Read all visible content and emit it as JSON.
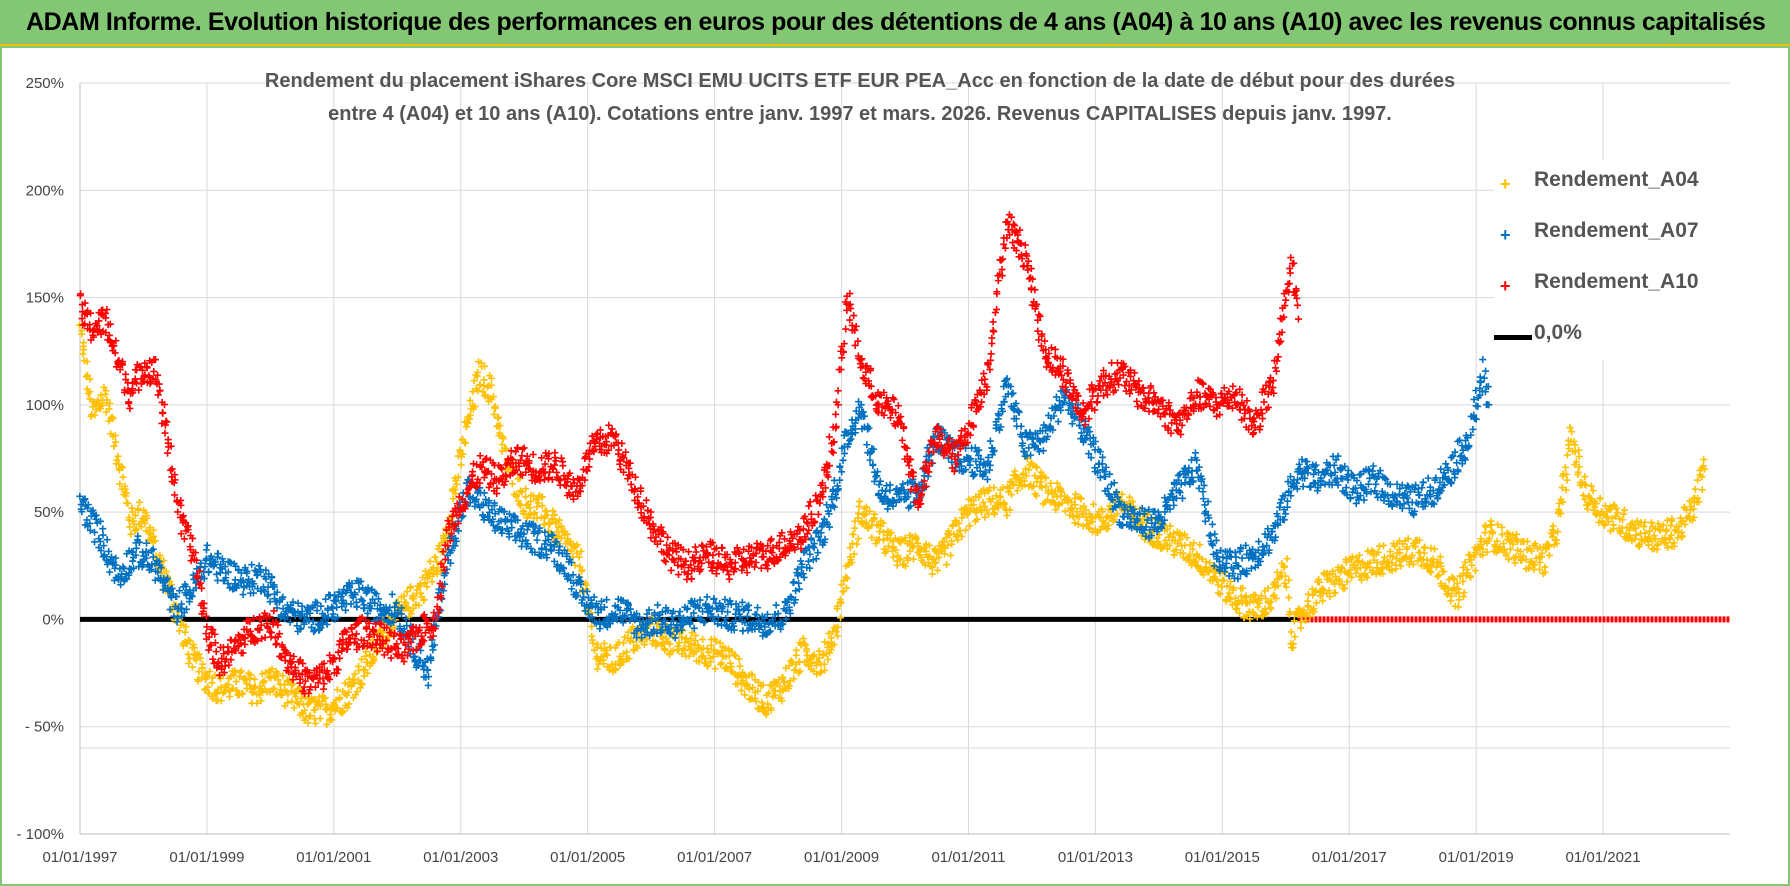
{
  "banner": {
    "title": "ADAM Informe. Evolution historique des performances en euros pour des détentions de 4 ans (A04) à 10 ans (A10) avec les revenus connus capitalisés"
  },
  "colors": {
    "banner_bg": "#83c774",
    "banner_border": "#f2c200",
    "A04": "#ffc000",
    "A07": "#0070c0",
    "A10": "#ff0000",
    "zero": "#000000"
  },
  "chart_data": {
    "type": "scatter",
    "title_line1": "Rendement du placement iShares Core MSCI EMU UCITS ETF EUR PEA_Acc en fonction de la date de début pour des durées",
    "title_line2": "entre 4 (A04) et 10 ans (A10). Cotations entre janv. 1997 et mars. 2026. Revenus CAPITALISES depuis janv. 1997.",
    "x_tick_labels": [
      "01/01/1997",
      "01/01/1999",
      "01/01/2001",
      "01/01/2003",
      "01/01/2005",
      "01/01/2007",
      "01/01/2009",
      "01/01/2011",
      "01/01/2013",
      "01/01/2015",
      "01/01/2017",
      "01/01/2019",
      "01/01/2021"
    ],
    "x_tick_years": [
      1997,
      1999,
      2001,
      2003,
      2005,
      2007,
      2009,
      2011,
      2013,
      2015,
      2017,
      2019,
      2021
    ],
    "xlim": [
      1997,
      2023
    ],
    "y_tick_labels": [
      "250%",
      "200%",
      "150%",
      "100%",
      "50%",
      "0%",
      "- 50%",
      "- 100%"
    ],
    "y_tick_values": [
      250,
      200,
      150,
      100,
      50,
      0,
      -50,
      -100
    ],
    "ylim": [
      -100,
      250
    ],
    "grid": true,
    "legend_position": "right",
    "series": [
      {
        "name": "Rendement_A04",
        "color": "#ffc000",
        "points": [
          [
            1997.0,
            135
          ],
          [
            1997.2,
            95
          ],
          [
            1997.4,
            105
          ],
          [
            1997.6,
            75
          ],
          [
            1997.8,
            45
          ],
          [
            1998.0,
            50
          ],
          [
            1998.2,
            30
          ],
          [
            1998.4,
            15
          ],
          [
            1998.6,
            -5
          ],
          [
            1998.8,
            -20
          ],
          [
            1999.0,
            -28
          ],
          [
            1999.2,
            -32
          ],
          [
            1999.5,
            -30
          ],
          [
            1999.8,
            -33
          ],
          [
            2000.0,
            -28
          ],
          [
            2000.3,
            -35
          ],
          [
            2000.6,
            -43
          ],
          [
            2000.9,
            -42
          ],
          [
            2001.2,
            -35
          ],
          [
            2001.5,
            -22
          ],
          [
            2001.8,
            -5
          ],
          [
            2002.1,
            5
          ],
          [
            2002.4,
            15
          ],
          [
            2002.7,
            30
          ],
          [
            2002.9,
            60
          ],
          [
            2003.1,
            90
          ],
          [
            2003.3,
            115
          ],
          [
            2003.5,
            105
          ],
          [
            2003.7,
            75
          ],
          [
            2004.0,
            55
          ],
          [
            2004.3,
            50
          ],
          [
            2004.6,
            38
          ],
          [
            2004.9,
            25
          ],
          [
            2005.1,
            -15
          ],
          [
            2005.4,
            -20
          ],
          [
            2005.7,
            -10
          ],
          [
            2006.0,
            -5
          ],
          [
            2006.3,
            -10
          ],
          [
            2006.6,
            -12
          ],
          [
            2006.9,
            -15
          ],
          [
            2007.2,
            -18
          ],
          [
            2007.5,
            -30
          ],
          [
            2007.8,
            -38
          ],
          [
            2008.1,
            -30
          ],
          [
            2008.4,
            -15
          ],
          [
            2008.7,
            -20
          ],
          [
            2008.9,
            -5
          ],
          [
            2009.1,
            25
          ],
          [
            2009.3,
            50
          ],
          [
            2009.6,
            40
          ],
          [
            2009.9,
            30
          ],
          [
            2010.2,
            35
          ],
          [
            2010.5,
            25
          ],
          [
            2010.8,
            40
          ],
          [
            2011.0,
            50
          ],
          [
            2011.3,
            55
          ],
          [
            2011.6,
            55
          ],
          [
            2011.9,
            70
          ],
          [
            2012.2,
            60
          ],
          [
            2012.5,
            55
          ],
          [
            2012.8,
            50
          ],
          [
            2013.1,
            45
          ],
          [
            2013.4,
            55
          ],
          [
            2013.7,
            45
          ],
          [
            2014.0,
            40
          ],
          [
            2014.3,
            35
          ],
          [
            2014.6,
            30
          ],
          [
            2014.9,
            20
          ],
          [
            2015.2,
            10
          ],
          [
            2015.5,
            5
          ],
          [
            2015.8,
            10
          ],
          [
            2016.0,
            25
          ],
          [
            2016.1,
            -8
          ],
          [
            2016.3,
            5
          ],
          [
            2016.6,
            15
          ],
          [
            2016.9,
            20
          ],
          [
            2017.2,
            25
          ],
          [
            2017.5,
            28
          ],
          [
            2017.8,
            30
          ],
          [
            2018.1,
            33
          ],
          [
            2018.4,
            25
          ],
          [
            2018.7,
            10
          ],
          [
            2018.9,
            25
          ],
          [
            2019.2,
            40
          ],
          [
            2019.5,
            35
          ],
          [
            2019.8,
            30
          ],
          [
            2020.1,
            28
          ],
          [
            2020.3,
            45
          ],
          [
            2020.5,
            85
          ],
          [
            2020.7,
            60
          ],
          [
            2021.0,
            50
          ],
          [
            2021.3,
            45
          ],
          [
            2021.6,
            40
          ],
          [
            2021.9,
            38
          ],
          [
            2022.2,
            42
          ],
          [
            2022.4,
            50
          ],
          [
            2022.6,
            70
          ]
        ]
      },
      {
        "name": "Rendement_A07",
        "color": "#0070c0",
        "points": [
          [
            1997.0,
            55
          ],
          [
            1997.3,
            40
          ],
          [
            1997.6,
            20
          ],
          [
            1997.9,
            32
          ],
          [
            1998.2,
            25
          ],
          [
            1998.5,
            5
          ],
          [
            1998.8,
            15
          ],
          [
            1999.0,
            28
          ],
          [
            1999.3,
            22
          ],
          [
            1999.6,
            18
          ],
          [
            1999.9,
            20
          ],
          [
            2000.2,
            5
          ],
          [
            2000.5,
            0
          ],
          [
            2000.8,
            2
          ],
          [
            2001.1,
            8
          ],
          [
            2001.4,
            12
          ],
          [
            2001.7,
            5
          ],
          [
            2002.0,
            5
          ],
          [
            2002.3,
            -15
          ],
          [
            2002.5,
            -25
          ],
          [
            2002.7,
            15
          ],
          [
            2002.9,
            40
          ],
          [
            2003.1,
            60
          ],
          [
            2003.3,
            55
          ],
          [
            2003.5,
            48
          ],
          [
            2003.8,
            42
          ],
          [
            2004.1,
            38
          ],
          [
            2004.4,
            35
          ],
          [
            2004.7,
            25
          ],
          [
            2004.9,
            10
          ],
          [
            2005.2,
            2
          ],
          [
            2005.5,
            5
          ],
          [
            2005.8,
            -3
          ],
          [
            2006.1,
            0
          ],
          [
            2006.4,
            -2
          ],
          [
            2006.7,
            3
          ],
          [
            2006.9,
            5
          ],
          [
            2007.2,
            2
          ],
          [
            2007.5,
            1
          ],
          [
            2007.8,
            -1
          ],
          [
            2008.1,
            2
          ],
          [
            2008.4,
            25
          ],
          [
            2008.7,
            40
          ],
          [
            2008.9,
            60
          ],
          [
            2009.1,
            85
          ],
          [
            2009.3,
            100
          ],
          [
            2009.6,
            60
          ],
          [
            2009.9,
            55
          ],
          [
            2010.2,
            60
          ],
          [
            2010.5,
            85
          ],
          [
            2010.8,
            75
          ],
          [
            2011.0,
            75
          ],
          [
            2011.3,
            70
          ],
          [
            2011.6,
            110
          ],
          [
            2011.9,
            80
          ],
          [
            2012.2,
            85
          ],
          [
            2012.5,
            105
          ],
          [
            2012.8,
            88
          ],
          [
            2013.1,
            70
          ],
          [
            2013.4,
            50
          ],
          [
            2013.7,
            45
          ],
          [
            2014.0,
            45
          ],
          [
            2014.3,
            60
          ],
          [
            2014.6,
            72
          ],
          [
            2014.9,
            30
          ],
          [
            2015.2,
            25
          ],
          [
            2015.5,
            30
          ],
          [
            2015.8,
            40
          ],
          [
            2016.0,
            55
          ],
          [
            2016.2,
            70
          ],
          [
            2016.5,
            65
          ],
          [
            2016.8,
            70
          ],
          [
            2017.1,
            60
          ],
          [
            2017.4,
            65
          ],
          [
            2017.7,
            58
          ],
          [
            2018.0,
            55
          ],
          [
            2018.3,
            60
          ],
          [
            2018.6,
            70
          ],
          [
            2018.9,
            85
          ],
          [
            2019.1,
            115
          ],
          [
            2019.2,
            100
          ]
        ]
      },
      {
        "name": "Rendement_A10",
        "color": "#ff0000",
        "points": [
          [
            1997.0,
            145
          ],
          [
            1997.2,
            135
          ],
          [
            1997.4,
            140
          ],
          [
            1997.6,
            120
          ],
          [
            1997.8,
            105
          ],
          [
            1998.0,
            118
          ],
          [
            1998.2,
            115
          ],
          [
            1998.4,
            80
          ],
          [
            1998.6,
            45
          ],
          [
            1998.8,
            30
          ],
          [
            1999.0,
            -5
          ],
          [
            1999.2,
            -20
          ],
          [
            1999.4,
            -15
          ],
          [
            1999.7,
            -5
          ],
          [
            2000.0,
            0
          ],
          [
            2000.3,
            -20
          ],
          [
            2000.6,
            -30
          ],
          [
            2000.9,
            -25
          ],
          [
            2001.2,
            -10
          ],
          [
            2001.5,
            -5
          ],
          [
            2001.8,
            -10
          ],
          [
            2002.1,
            -15
          ],
          [
            2002.4,
            -5
          ],
          [
            2002.6,
            0
          ],
          [
            2002.8,
            40
          ],
          [
            2003.0,
            55
          ],
          [
            2003.3,
            70
          ],
          [
            2003.6,
            65
          ],
          [
            2003.9,
            75
          ],
          [
            2004.2,
            70
          ],
          [
            2004.5,
            72
          ],
          [
            2004.8,
            60
          ],
          [
            2005.1,
            80
          ],
          [
            2005.4,
            85
          ],
          [
            2005.7,
            65
          ],
          [
            2006.0,
            45
          ],
          [
            2006.3,
            30
          ],
          [
            2006.6,
            25
          ],
          [
            2006.9,
            30
          ],
          [
            2007.2,
            25
          ],
          [
            2007.5,
            28
          ],
          [
            2007.8,
            30
          ],
          [
            2008.1,
            35
          ],
          [
            2008.4,
            40
          ],
          [
            2008.7,
            60
          ],
          [
            2008.9,
            90
          ],
          [
            2009.1,
            150
          ],
          [
            2009.3,
            120
          ],
          [
            2009.6,
            100
          ],
          [
            2009.9,
            95
          ],
          [
            2010.2,
            55
          ],
          [
            2010.5,
            85
          ],
          [
            2010.8,
            75
          ],
          [
            2011.0,
            90
          ],
          [
            2011.3,
            115
          ],
          [
            2011.6,
            185
          ],
          [
            2011.9,
            170
          ],
          [
            2012.2,
            125
          ],
          [
            2012.5,
            115
          ],
          [
            2012.8,
            95
          ],
          [
            2013.1,
            110
          ],
          [
            2013.4,
            115
          ],
          [
            2013.7,
            105
          ],
          [
            2014.0,
            100
          ],
          [
            2014.3,
            90
          ],
          [
            2014.6,
            105
          ],
          [
            2014.9,
            100
          ],
          [
            2015.2,
            105
          ],
          [
            2015.5,
            90
          ],
          [
            2015.8,
            110
          ],
          [
            2016.0,
            150
          ],
          [
            2016.1,
            165
          ],
          [
            2016.2,
            140
          ]
        ]
      },
      {
        "name": "0,0%",
        "color": "#000000",
        "line_from": 1997,
        "line_to": 2016.2,
        "value": 0
      }
    ],
    "zero_band": {
      "color": "#ff0000",
      "from": 2016.2,
      "to": 2023,
      "value": 0
    }
  }
}
